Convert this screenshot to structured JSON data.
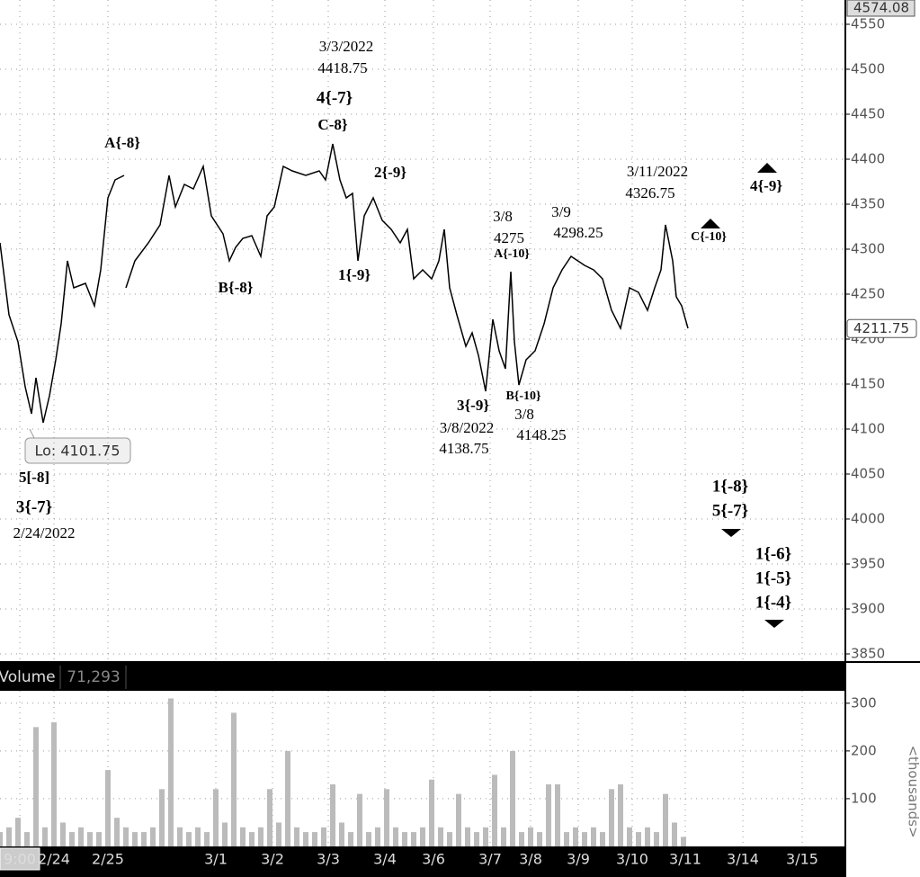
{
  "chart_data": [
    {
      "type": "line",
      "color": "#000000",
      "x": [
        0,
        1,
        2,
        2.8,
        3.5,
        4,
        4.8,
        5.5,
        6.2,
        6.8,
        7.5,
        8.2,
        9.5,
        10.5,
        11.2,
        12,
        12.8,
        13.8,
        13.9,
        14,
        15,
        16.5,
        17.8,
        18.8,
        19.5,
        20.5,
        21.5,
        22.6,
        23.5,
        24.8,
        25.5,
        26.2,
        27,
        28,
        29,
        29.7,
        30.5,
        31.5,
        32.5,
        34,
        35.5,
        36.2,
        37,
        37.8,
        38.5,
        39.2,
        39.8,
        40.5,
        41.5,
        42.5,
        43.5,
        44.5,
        45.3,
        46,
        47,
        48,
        48.8,
        49.4,
        50,
        50.8,
        51.8,
        52.5,
        53.2,
        54,
        54.8,
        55.5,
        56.2,
        56.8,
        57.2,
        57.7,
        58.5,
        59.5,
        60.5,
        61.5,
        62.5,
        63.5,
        65,
        66,
        67,
        68,
        69,
        70,
        71,
        72,
        72.8,
        73.5,
        74,
        74.8,
        75.2,
        75.8,
        76.5
      ],
      "values": [
        4307,
        4227,
        4197,
        4147,
        4117,
        4157,
        4107,
        4137,
        4177,
        4217,
        4287,
        4257,
        4262,
        4237,
        4277,
        4357,
        4377,
        4382,
        null,
        4257,
        4287,
        4307,
        4327,
        4382,
        4347,
        4372,
        4367,
        4392,
        4337,
        4317,
        4287,
        4302,
        4312,
        4315,
        4292,
        4337,
        4347,
        4392,
        4387,
        4382,
        4387,
        4377,
        4417,
        4377,
        4357,
        4362,
        4287,
        4337,
        4357,
        4332,
        4322,
        4307,
        4322,
        4267,
        4277,
        4267,
        4287,
        4322,
        4257,
        4227,
        4192,
        4207,
        4182,
        4142,
        4222,
        4187,
        4167,
        4275,
        4197,
        4149,
        4177,
        4187,
        4217,
        4257,
        4277,
        4292,
        4282,
        4277,
        4267,
        4232,
        4212,
        4257,
        4252,
        4232,
        4257,
        4277,
        4327,
        4287,
        4247,
        4237,
        4212
      ],
      "xlim": [
        0,
        94
      ],
      "xticks": [
        {
          "value": 2.2,
          "label": "9:00"
        },
        {
          "value": 6,
          "label": "2/24"
        },
        {
          "value": 12,
          "label": "2/25"
        },
        {
          "value": 24,
          "label": "3/1"
        },
        {
          "value": 30.3,
          "label": "3/2"
        },
        {
          "value": 36.5,
          "label": "3/3"
        },
        {
          "value": 42.8,
          "label": "3/4"
        },
        {
          "value": 48.2,
          "label": "3/6"
        },
        {
          "value": 54.5,
          "label": "3/7"
        },
        {
          "value": 59,
          "label": "3/8"
        },
        {
          "value": 64.3,
          "label": "3/9"
        },
        {
          "value": 70.3,
          "label": "3/10"
        },
        {
          "value": 76.2,
          "label": "3/11"
        },
        {
          "value": 82.6,
          "label": "3/14"
        },
        {
          "value": 89.2,
          "label": "3/15"
        }
      ],
      "ylim": [
        3842,
        4577
      ],
      "yticks": [
        3850,
        3900,
        3950,
        4000,
        4050,
        4100,
        4150,
        4200,
        4250,
        4300,
        4350,
        4400,
        4450,
        4500,
        4550
      ],
      "grid": true,
      "high_value": 4574.08,
      "last_value": 4211.75,
      "annotations": [
        "A{-8}",
        "3/3/2022",
        "4418.75",
        "4{-7}",
        "C-8}",
        "2{-9}",
        "B{-8}",
        "1{-9}",
        "3/8",
        "4275",
        "A{-10}",
        "3/9",
        "4298.25",
        "3/11/2022",
        "4326.75",
        "C{-10}",
        "4{-9}",
        "3{-9}",
        "B{-10}",
        "3/8/2022",
        "4138.75",
        "3/8",
        "4148.25",
        "5[-8]",
        "3{-7}",
        "2/24/2022",
        "1{-8}",
        "5{-7}",
        "1{-6}",
        "1{-5}",
        "1{-4}"
      ],
      "low_label": "Lo: 4101.75"
    },
    {
      "type": "bar",
      "title": "Volume",
      "subtitle": "71,293",
      "color": "#bbbbbb",
      "x": [
        0,
        1,
        2,
        3,
        4,
        5,
        6,
        7,
        8,
        9,
        10,
        11,
        12,
        13,
        14,
        15,
        16,
        17,
        18,
        19,
        20,
        21,
        22,
        23,
        24,
        25,
        26,
        27,
        28,
        29,
        30,
        31,
        32,
        33,
        34,
        35,
        36,
        37,
        38,
        39,
        40,
        41,
        42,
        43,
        44,
        45,
        46,
        47,
        48,
        49,
        50,
        51,
        52,
        53,
        54,
        55,
        56,
        57,
        58,
        59,
        60,
        61,
        62,
        63,
        64,
        65,
        66,
        67,
        68,
        69,
        70,
        71,
        72,
        73,
        74,
        75,
        76
      ],
      "values": [
        30,
        40,
        60,
        30,
        250,
        40,
        260,
        50,
        30,
        40,
        30,
        30,
        160,
        60,
        40,
        30,
        30,
        40,
        120,
        310,
        40,
        30,
        40,
        30,
        120,
        50,
        280,
        40,
        30,
        40,
        120,
        50,
        200,
        40,
        30,
        30,
        40,
        130,
        50,
        30,
        110,
        30,
        40,
        120,
        40,
        30,
        30,
        40,
        140,
        40,
        30,
        110,
        40,
        30,
        40,
        150,
        40,
        200,
        30,
        40,
        30,
        130,
        130,
        30,
        40,
        30,
        40,
        30,
        120,
        130,
        40,
        30,
        40,
        30,
        110,
        50,
        20
      ],
      "ylim": [
        0,
        326
      ],
      "yticks": [
        100,
        200,
        300
      ],
      "y_label": "<thousands>"
    }
  ]
}
